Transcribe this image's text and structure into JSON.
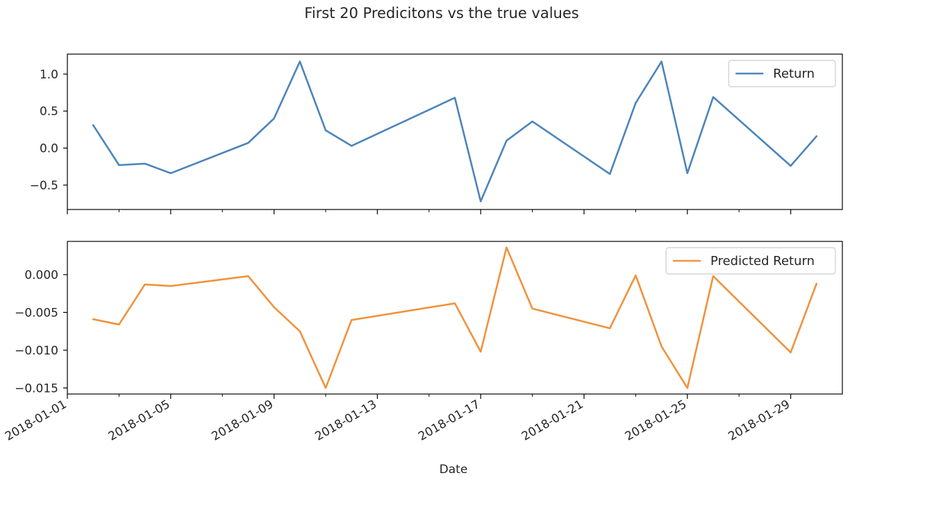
{
  "chart_data": {
    "type": "line",
    "title": "First 20 Predicitons vs the true values",
    "xlabel": "Date",
    "x_tick_labels": [
      "2018-01-01",
      "2018-01-05",
      "2018-01-09",
      "2018-01-13",
      "2018-01-17",
      "2018-01-21",
      "2018-01-25",
      "2018-01-29"
    ],
    "x": [
      "2018-01-02",
      "2018-01-03",
      "2018-01-04",
      "2018-01-05",
      "2018-01-08",
      "2018-01-09",
      "2018-01-10",
      "2018-01-11",
      "2018-01-12",
      "2018-01-16",
      "2018-01-17",
      "2018-01-18",
      "2018-01-19",
      "2018-01-22",
      "2018-01-23",
      "2018-01-24",
      "2018-01-25",
      "2018-01-26",
      "2018-01-29",
      "2018-01-30"
    ],
    "xlim": [
      "2018-01-01",
      "2018-01-31"
    ],
    "subplots": [
      {
        "series": [
          {
            "name": "Return",
            "color": "#4c84bb",
            "values": [
              0.31,
              -0.23,
              -0.21,
              -0.34,
              0.07,
              0.4,
              1.17,
              0.24,
              0.03,
              0.68,
              -0.72,
              0.1,
              0.36,
              -0.35,
              0.61,
              1.17,
              -0.34,
              0.69,
              -0.24,
              0.16
            ]
          }
        ],
        "ylim": [
          -0.83,
          1.27
        ],
        "y_ticks": [
          -0.5,
          0.0,
          0.5,
          1.0
        ],
        "y_tick_labels": [
          "−0.5",
          "0.0",
          "0.5",
          "1.0"
        ],
        "legend_position": "top-right"
      },
      {
        "series": [
          {
            "name": "Predicted Return",
            "color": "#f0923c",
            "values": [
              -0.0059,
              -0.0066,
              -0.0013,
              -0.0015,
              -0.0002,
              -0.0043,
              -0.0075,
              -0.015,
              -0.006,
              -0.0038,
              -0.0102,
              0.0036,
              -0.0045,
              -0.0071,
              -0.0001,
              -0.0095,
              -0.015,
              -0.0002,
              -0.0103,
              -0.0012
            ]
          }
        ],
        "ylim": [
          -0.0158,
          0.0044
        ],
        "y_ticks": [
          -0.015,
          -0.01,
          -0.005,
          0.0
        ],
        "y_tick_labels": [
          "−0.015",
          "−0.010",
          "−0.005",
          "0.000"
        ],
        "legend_position": "top-right"
      }
    ]
  }
}
